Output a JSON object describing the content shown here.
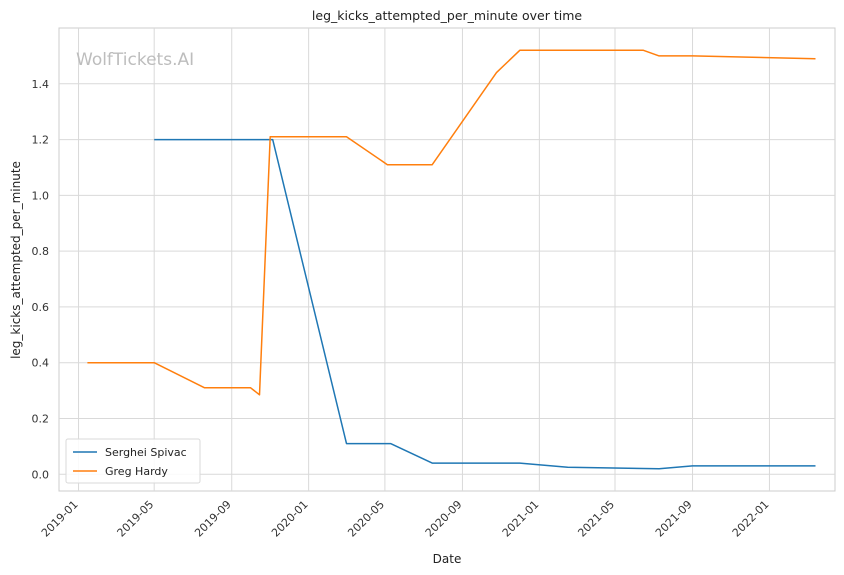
{
  "chart_data": {
    "type": "line",
    "title": "leg_kicks_attempted_per_minute over time",
    "xlabel": "Date",
    "ylabel": "leg_kicks_attempted_per_minute",
    "watermark": "WolfTickets.AI",
    "xlim": [
      "2018-12-01",
      "2022-04-15"
    ],
    "ylim": [
      -0.06,
      1.6
    ],
    "x_ticks": [
      "2019-01",
      "2019-05",
      "2019-09",
      "2020-01",
      "2020-05",
      "2020-09",
      "2021-01",
      "2021-05",
      "2021-09",
      "2022-01"
    ],
    "y_ticks": [
      "0.0",
      "0.2",
      "0.4",
      "0.6",
      "0.8",
      "1.0",
      "1.2",
      "1.4"
    ],
    "grid": true,
    "legend_position": "bottom-left",
    "series": [
      {
        "name": "Serghei Spivac",
        "color": "#1f77b4",
        "points": [
          {
            "x": "2019-05-01",
            "y": 1.2
          },
          {
            "x": "2019-11-05",
            "y": 1.2
          },
          {
            "x": "2020-03-01",
            "y": 0.11
          },
          {
            "x": "2020-05-10",
            "y": 0.11
          },
          {
            "x": "2020-07-15",
            "y": 0.04
          },
          {
            "x": "2020-12-01",
            "y": 0.04
          },
          {
            "x": "2021-02-15",
            "y": 0.025
          },
          {
            "x": "2021-07-10",
            "y": 0.02
          },
          {
            "x": "2021-09-01",
            "y": 0.03
          },
          {
            "x": "2022-03-15",
            "y": 0.03
          }
        ]
      },
      {
        "name": "Greg Hardy",
        "color": "#ff7f0e",
        "points": [
          {
            "x": "2019-01-15",
            "y": 0.4
          },
          {
            "x": "2019-05-01",
            "y": 0.4
          },
          {
            "x": "2019-07-20",
            "y": 0.31
          },
          {
            "x": "2019-10-01",
            "y": 0.31
          },
          {
            "x": "2019-10-15",
            "y": 0.285
          },
          {
            "x": "2019-11-01",
            "y": 1.21
          },
          {
            "x": "2020-03-01",
            "y": 1.21
          },
          {
            "x": "2020-05-05",
            "y": 1.11
          },
          {
            "x": "2020-07-15",
            "y": 1.11
          },
          {
            "x": "2020-10-25",
            "y": 1.44
          },
          {
            "x": "2020-12-01",
            "y": 1.52
          },
          {
            "x": "2021-06-15",
            "y": 1.52
          },
          {
            "x": "2021-07-10",
            "y": 1.5
          },
          {
            "x": "2021-09-01",
            "y": 1.5
          },
          {
            "x": "2022-03-15",
            "y": 1.49
          }
        ]
      }
    ]
  }
}
